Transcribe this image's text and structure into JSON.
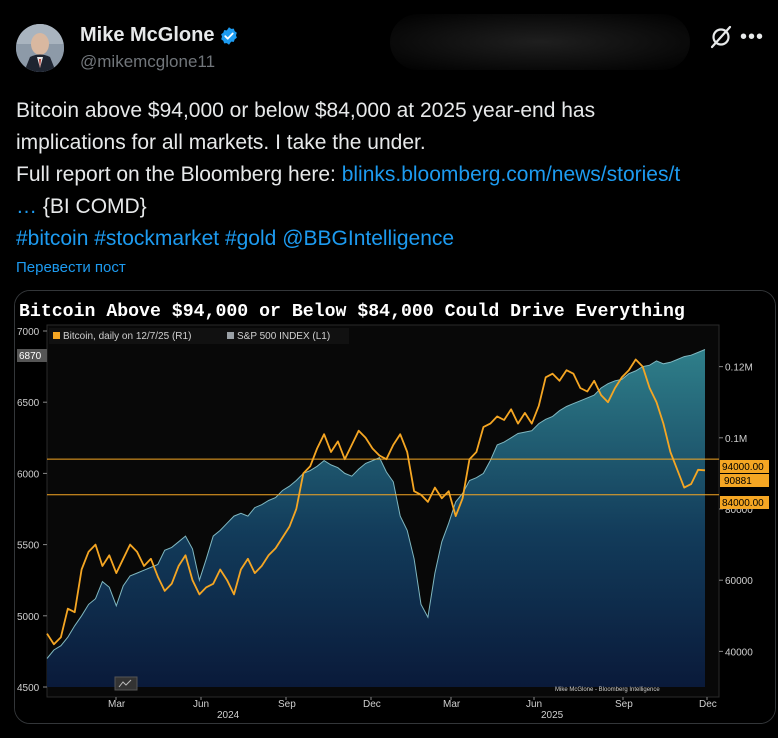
{
  "author": {
    "name": "Mike McGlone",
    "handle": "@mikemcglone11"
  },
  "tweet": {
    "line1": "Bitcoin above $94,000 or below $84,000 at 2025 year-end has",
    "line2": "implications for all markets. I take the under.",
    "line3_prefix": "Full report on the Bloomberg here: ",
    "link": "blinks.bloomberg.com/news/stories/t",
    "ellipsis": "…",
    "tag_comd": " {BI COMD}",
    "hashtags": [
      "#bitcoin",
      "#stockmarket",
      "#gold"
    ],
    "mention": "@BBGIntelligence",
    "translate": "Перевести пост"
  },
  "colors": {
    "accent": "#1d9bf0",
    "btc": "#f5a623",
    "spx_fill_top": "#2f7f8a",
    "spx_fill_bottom": "#0a1a3a",
    "level_line": "#f5a623"
  },
  "chart_data": {
    "type": "line",
    "title": "Bitcoin Above $94,000 or Below $84,000 Could Drive Everything",
    "legend": [
      {
        "label": "Bitcoin, daily on 12/7/25 (R1)",
        "color": "#f5a623"
      },
      {
        "label": "S&P 500 INDEX (L1)",
        "color": "#9aa0a6"
      }
    ],
    "left_axis": {
      "ticks": [
        "7000",
        "6500",
        "6000",
        "5500",
        "5000",
        "4500"
      ],
      "ylim": [
        4500,
        7000
      ],
      "last_badge": "6870"
    },
    "right_axis": {
      "ticks": [
        "0.12M",
        "0.1M",
        "80000",
        "60000",
        "40000"
      ],
      "ylim": [
        30000,
        130000
      ]
    },
    "right_badges": [
      "94000.00",
      "90881",
      "84000.00"
    ],
    "levels": [
      94000,
      84000
    ],
    "x_month_labels": [
      "Mar",
      "Jun",
      "Sep",
      "Dec",
      "Mar",
      "Jun",
      "Sep",
      "Dec"
    ],
    "x_year_labels": [
      "2024",
      "2025"
    ],
    "credit": "Mike McGlone - Bloomberg Intelligence",
    "series": [
      {
        "name": "Bitcoin",
        "axis": "right",
        "values": [
          45000,
          42000,
          44000,
          52000,
          51000,
          63000,
          68000,
          70000,
          64000,
          67000,
          62000,
          66000,
          70000,
          68000,
          64000,
          66000,
          61000,
          57000,
          59000,
          64000,
          67000,
          60000,
          56000,
          58000,
          59000,
          63000,
          60000,
          56000,
          63000,
          66000,
          62000,
          64000,
          67000,
          69000,
          72000,
          75000,
          80000,
          90000,
          92000,
          97000,
          101000,
          96000,
          99000,
          94000,
          98000,
          102000,
          100000,
          97000,
          95000,
          94000,
          98000,
          101000,
          96000,
          85000,
          84000,
          82000,
          86000,
          83000,
          85000,
          78000,
          83000,
          94000,
          96000,
          103000,
          104000,
          106000,
          105000,
          108000,
          104000,
          107000,
          104000,
          109000,
          117000,
          118000,
          116000,
          119000,
          118000,
          114000,
          113000,
          116000,
          112000,
          110000,
          114000,
          117000,
          119000,
          122000,
          120000,
          114000,
          110000,
          104000,
          96000,
          91000,
          86000,
          87000,
          91000,
          90881
        ]
      },
      {
        "name": "S&P 500 INDEX",
        "axis": "left",
        "values": [
          4700,
          4760,
          4790,
          4850,
          4930,
          5000,
          5080,
          5120,
          5240,
          5200,
          5070,
          5210,
          5280,
          5300,
          5320,
          5340,
          5360,
          5460,
          5480,
          5520,
          5560,
          5470,
          5250,
          5400,
          5560,
          5600,
          5650,
          5700,
          5720,
          5700,
          5760,
          5780,
          5810,
          5830,
          5880,
          5910,
          5950,
          6000,
          6020,
          6050,
          6090,
          6060,
          6040,
          6000,
          5980,
          6030,
          6070,
          6090,
          6110,
          6010,
          5940,
          5700,
          5600,
          5400,
          5080,
          4990,
          5300,
          5520,
          5650,
          5800,
          5860,
          5950,
          5970,
          6000,
          6090,
          6200,
          6220,
          6250,
          6280,
          6290,
          6300,
          6350,
          6380,
          6400,
          6440,
          6470,
          6490,
          6510,
          6530,
          6550,
          6600,
          6630,
          6650,
          6660,
          6700,
          6720,
          6750,
          6760,
          6790,
          6770,
          6780,
          6800,
          6820,
          6830,
          6850,
          6870
        ]
      }
    ]
  }
}
